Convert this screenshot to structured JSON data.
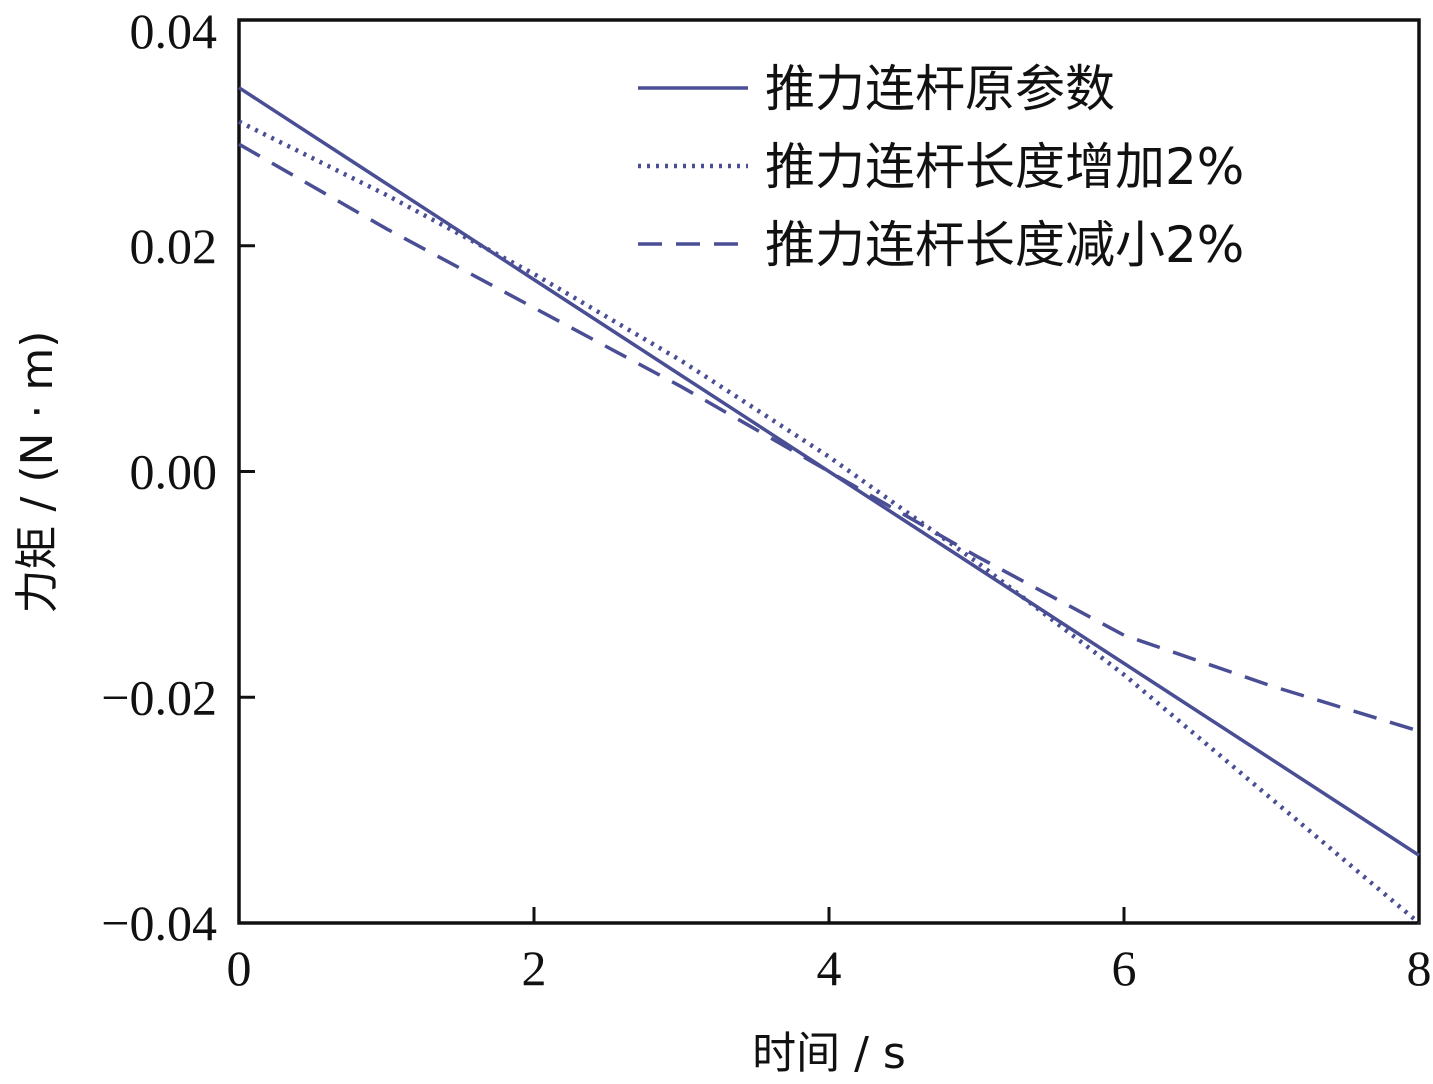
{
  "chart_data": {
    "type": "line",
    "title": "",
    "xlabel": "时间 / s",
    "ylabel": "力矩 / (N · m)",
    "xlim": [
      0,
      8
    ],
    "ylim": [
      -0.04,
      0.04
    ],
    "xticks": [
      0,
      2,
      4,
      6,
      8
    ],
    "xtick_labels": [
      "0",
      "2",
      "4",
      "6",
      "8"
    ],
    "yticks": [
      0.04,
      0.02,
      0.0,
      -0.02,
      -0.04
    ],
    "ytick_labels": [
      "0.04",
      "0.02",
      "0.00",
      "−0.02",
      "−0.04"
    ],
    "grid": false,
    "legend_position": "top-right",
    "line_color": "#4a4e94",
    "series": [
      {
        "name": "推力连杆原参数",
        "style": "solid",
        "x": [
          0,
          1,
          2,
          3,
          4,
          5,
          6,
          7,
          8
        ],
        "y": [
          0.034,
          0.0255,
          0.017,
          0.0085,
          0.0,
          -0.0085,
          -0.017,
          -0.0255,
          -0.034
        ]
      },
      {
        "name": "推力连杆长度增加2%",
        "style": "dotted",
        "x": [
          0,
          1,
          2,
          3,
          4,
          5,
          6,
          7,
          8
        ],
        "y": [
          0.031,
          0.0245,
          0.0175,
          0.0098,
          0.0013,
          -0.008,
          -0.018,
          -0.029,
          -0.04
        ]
      },
      {
        "name": "推力连杆长度减小2%",
        "style": "dashed",
        "x": [
          0,
          1,
          2,
          3,
          4,
          5,
          6,
          7,
          8
        ],
        "y": [
          0.029,
          0.0215,
          0.0145,
          0.0075,
          0.0,
          -0.0075,
          -0.0145,
          -0.019,
          -0.023
        ]
      }
    ]
  }
}
